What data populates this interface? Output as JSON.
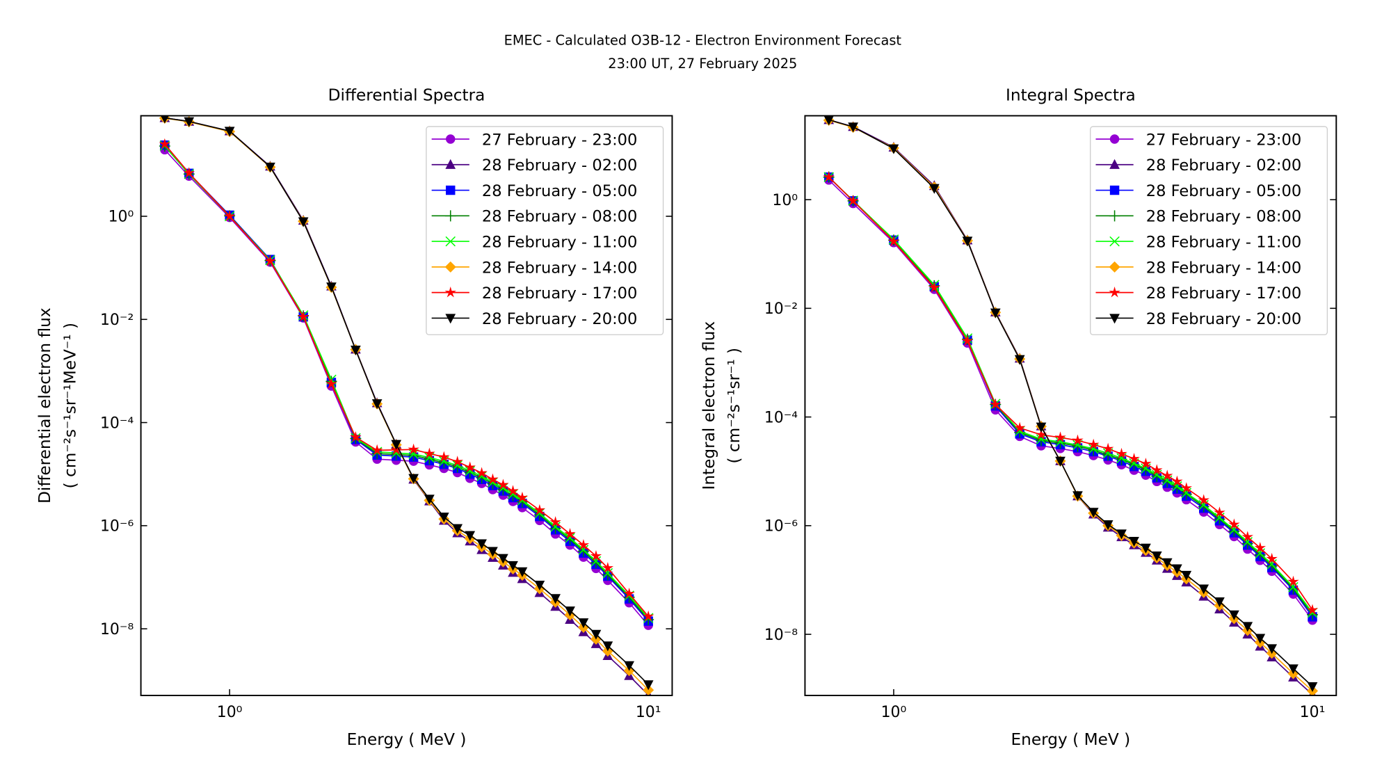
{
  "title": "EMEC - Calculated O3B-12 - Electron Environment Forecast",
  "subtitle": "23:00 UT, 27 February 2025",
  "chart_data": [
    {
      "type": "line",
      "title": "Differential Spectra",
      "xlabel": "Energy ( MeV )",
      "ylabel": [
        "Differential electron flux",
        "( cm⁻²s⁻¹sr⁻¹MeV⁻¹ )"
      ],
      "xscale": "log",
      "yscale": "log",
      "legend": "upper right",
      "xlim": [
        0.614,
        11.4
      ],
      "ylim": [
        5.1e-10,
        89
      ],
      "xticks": [
        {
          "value": 1,
          "label": "10⁰"
        },
        {
          "value": 10,
          "label": "10¹"
        }
      ],
      "yticks": [
        {
          "value": 1,
          "label": "10⁰"
        },
        {
          "value": 0.01,
          "label": "10⁻²"
        },
        {
          "value": 0.0001,
          "label": "10⁻⁴"
        },
        {
          "value": 1e-06,
          "label": "10⁻⁶"
        },
        {
          "value": 1e-08,
          "label": "10⁻⁸"
        }
      ],
      "x": [
        0.7,
        0.8,
        1.0,
        1.25,
        1.5,
        1.75,
        2.0,
        2.25,
        2.5,
        2.75,
        3.0,
        3.25,
        3.5,
        3.75,
        4.0,
        4.25,
        4.5,
        4.75,
        5.0,
        5.5,
        6.0,
        6.5,
        7.0,
        7.5,
        8.0,
        9.0,
        10.0
      ],
      "series": [
        {
          "name": "27 February - 23:00",
          "color": "#9400d3",
          "marker": "o",
          "values": [
            19.5,
            6.0,
            0.95,
            0.129,
            0.0107,
            0.00051,
            4.2e-05,
            1.95e-05,
            1.86e-05,
            1.78e-05,
            1.51e-05,
            1.29e-05,
            1.07e-05,
            8.3e-06,
            6.6e-06,
            5e-06,
            3.9e-06,
            2.95e-06,
            2.24e-06,
            1.26e-06,
            6.9e-07,
            4.2e-07,
            2.45e-07,
            1.48e-07,
            8.7e-08,
            3.2e-08,
            1.17e-08
          ]
        },
        {
          "name": "28 February - 02:00",
          "color": "#4b0082",
          "marker": "^",
          "values": [
            81,
            69,
            45,
            9.3,
            0.83,
            0.044,
            0.00263,
            0.00024,
            3.8e-05,
            7.9e-06,
            3e-06,
            1.26e-06,
            7.2e-07,
            5e-07,
            3.4e-07,
            2.4e-07,
            1.7e-07,
            1.23e-07,
            9.3e-08,
            5e-08,
            2.7e-08,
            1.51e-08,
            8.7e-09,
            5.1e-09,
            3e-09,
            1.23e-09,
            5.2e-10
          ]
        },
        {
          "name": "28 February - 05:00",
          "color": "#0000ff",
          "marker": "s",
          "values": [
            24,
            6.8,
            1.05,
            0.145,
            0.0112,
            0.0006,
            4.7e-05,
            2.34e-05,
            2.24e-05,
            2.14e-05,
            1.82e-05,
            1.55e-05,
            1.29e-05,
            1e-05,
            7.9e-06,
            6e-06,
            4.7e-06,
            3.5e-06,
            2.7e-06,
            1.51e-06,
            8.3e-07,
            5e-07,
            2.95e-07,
            1.78e-07,
            1.05e-07,
            3.8e-08,
            1.41e-08
          ]
        },
        {
          "name": "28 February - 08:00",
          "color": "#008000",
          "marker": "+",
          "values": [
            23,
            6.6,
            1.02,
            0.138,
            0.0117,
            0.00063,
            4.9e-05,
            2.5e-05,
            2.4e-05,
            2.3e-05,
            1.95e-05,
            1.66e-05,
            1.38e-05,
            1.07e-05,
            8.5e-06,
            6.5e-06,
            5e-06,
            3.8e-06,
            2.9e-06,
            1.62e-06,
            8.9e-07,
            5.4e-07,
            3.2e-07,
            1.91e-07,
            1.12e-07,
            4.1e-08,
            1.51e-08
          ]
        },
        {
          "name": "28 February - 11:00",
          "color": "#00ff00",
          "marker": "x",
          "values": [
            23.4,
            6.6,
            1.0,
            0.141,
            0.012,
            0.00068,
            5e-05,
            2.7e-05,
            2.57e-05,
            2.45e-05,
            2.1e-05,
            1.78e-05,
            1.48e-05,
            1.15e-05,
            9.1e-06,
            6.9e-06,
            5.4e-06,
            4.1e-06,
            3.1e-06,
            1.74e-06,
            9.5e-07,
            5.8e-07,
            3.4e-07,
            2.04e-07,
            1.2e-07,
            4.4e-08,
            1.62e-08
          ]
        },
        {
          "name": "28 February - 14:00",
          "color": "#ffa500",
          "marker": "D",
          "values": [
            80,
            68,
            44,
            9.0,
            0.8,
            0.042,
            0.0026,
            0.00023,
            3.7e-05,
            8.1e-06,
            3.1e-06,
            1.35e-06,
            8e-07,
            5.6e-07,
            3.9e-07,
            2.8e-07,
            2e-07,
            1.45e-07,
            1.1e-07,
            6e-08,
            3.3e-08,
            1.86e-08,
            1.07e-08,
            6.3e-09,
            3.7e-09,
            1.55e-09,
            6.5e-10
          ]
        },
        {
          "name": "28 February - 17:00",
          "color": "#ff0000",
          "marker": "*",
          "values": [
            25,
            6.9,
            1.0,
            0.135,
            0.0112,
            0.00056,
            5.2e-05,
            2.9e-05,
            2.95e-05,
            3e-05,
            2.5e-05,
            2.14e-05,
            1.74e-05,
            1.35e-05,
            1.05e-05,
            7.9e-06,
            6.2e-06,
            4.7e-06,
            3.5e-06,
            2e-06,
            1.17e-06,
            6.9e-07,
            4.2e-07,
            2.57e-07,
            1.51e-07,
            4.8e-08,
            1.74e-08
          ]
        },
        {
          "name": "28 February - 20:00",
          "color": "#000000",
          "marker": "v",
          "values": [
            81,
            69,
            45,
            9.1,
            0.79,
            0.043,
            0.00257,
            0.000234,
            3.8e-05,
            8.3e-06,
            3.3e-06,
            1.48e-06,
            8.9e-07,
            6.5e-07,
            4.5e-07,
            3.2e-07,
            2.34e-07,
            1.7e-07,
            1.29e-07,
            7.1e-08,
            3.9e-08,
            2.24e-08,
            1.32e-08,
            7.9e-09,
            4.7e-09,
            1.95e-09,
            8.3e-10
          ]
        }
      ]
    },
    {
      "type": "line",
      "title": "Integral Spectra",
      "xlabel": "Energy ( MeV )",
      "ylabel": [
        "Integral electron flux",
        "( cm⁻²s⁻¹sr⁻¹ )"
      ],
      "xscale": "log",
      "yscale": "log",
      "legend": "upper right",
      "xlim": [
        0.614,
        11.4
      ],
      "ylim": [
        7.5e-10,
        35
      ],
      "xticks": [
        {
          "value": 1,
          "label": "10⁰"
        },
        {
          "value": 10,
          "label": "10¹"
        }
      ],
      "yticks": [
        {
          "value": 1,
          "label": "10⁰"
        },
        {
          "value": 0.01,
          "label": "10⁻²"
        },
        {
          "value": 0.0001,
          "label": "10⁻⁴"
        },
        {
          "value": 1e-06,
          "label": "10⁻⁶"
        },
        {
          "value": 1e-08,
          "label": "10⁻⁸"
        }
      ],
      "x": [
        0.7,
        0.8,
        1.0,
        1.25,
        1.5,
        1.75,
        2.0,
        2.25,
        2.5,
        2.75,
        3.0,
        3.25,
        3.5,
        3.75,
        4.0,
        4.25,
        4.5,
        4.75,
        5.0,
        5.5,
        6.0,
        6.5,
        7.0,
        7.5,
        8.0,
        9.0,
        10.0
      ],
      "series": [
        {
          "name": "27 February - 23:00",
          "color": "#9400d3",
          "marker": "o",
          "values": [
            2.3,
            0.85,
            0.162,
            0.0224,
            0.0023,
            0.000135,
            4.4e-05,
            2.95e-05,
            2.63e-05,
            2.3e-05,
            1.95e-05,
            1.62e-05,
            1.32e-05,
            1.05e-05,
            8.5e-06,
            6.5e-06,
            5.1e-06,
            4e-06,
            3e-06,
            1.78e-06,
            1.05e-06,
            6.3e-07,
            3.7e-07,
            2.3e-07,
            1.45e-07,
            5.5e-08,
            1.82e-08
          ]
        },
        {
          "name": "28 February - 02:00",
          "color": "#4b0082",
          "marker": "^",
          "values": [
            29.5,
            22,
            9.2,
            1.8,
            0.18,
            0.0085,
            0.0012,
            6.8e-05,
            1.55e-05,
            3.5e-06,
            1.62e-06,
            9.3e-07,
            6.2e-07,
            4.4e-07,
            3.2e-07,
            2.3e-07,
            1.62e-07,
            1.2e-07,
            9.1e-08,
            5e-08,
            2.9e-08,
            1.66e-08,
            1e-08,
            6e-09,
            3.8e-09,
            1.62e-09,
            7.8e-10
          ]
        },
        {
          "name": "28 February - 05:00",
          "color": "#0000ff",
          "marker": "s",
          "values": [
            2.6,
            0.95,
            0.18,
            0.025,
            0.0026,
            0.00016,
            4.9e-05,
            3.5e-05,
            3.1e-05,
            2.7e-05,
            2.3e-05,
            1.9e-05,
            1.55e-05,
            1.23e-05,
            1e-05,
            7.6e-06,
            6e-06,
            4.7e-06,
            3.5e-06,
            2.1e-06,
            1.23e-06,
            7.4e-07,
            4.4e-07,
            2.7e-07,
            1.7e-07,
            6.5e-08,
            2.1e-08
          ]
        },
        {
          "name": "28 February - 08:00",
          "color": "#008000",
          "marker": "+",
          "values": [
            2.6,
            0.95,
            0.18,
            0.026,
            0.0027,
            0.00017,
            5.2e-05,
            3.7e-05,
            3.3e-05,
            2.9e-05,
            2.45e-05,
            2e-05,
            1.66e-05,
            1.32e-05,
            1.07e-05,
            8.1e-06,
            6.4e-06,
            5e-06,
            3.8e-06,
            2.24e-06,
            1.32e-06,
            7.9e-07,
            4.7e-07,
            2.9e-07,
            1.82e-07,
            6.9e-08,
            2.3e-08
          ]
        },
        {
          "name": "28 February - 11:00",
          "color": "#00ff00",
          "marker": "x",
          "values": [
            2.6,
            0.96,
            0.185,
            0.027,
            0.0028,
            0.000175,
            5.5e-05,
            3.9e-05,
            3.5e-05,
            3.05e-05,
            2.6e-05,
            2.15e-05,
            1.75e-05,
            1.4e-05,
            1.13e-05,
            8.6e-06,
            6.8e-06,
            5.3e-06,
            4e-06,
            2.4e-06,
            1.4e-06,
            8.4e-07,
            5e-07,
            3.1e-07,
            1.95e-07,
            7.4e-08,
            2.5e-08
          ]
        },
        {
          "name": "28 February - 14:00",
          "color": "#ffa500",
          "marker": "D",
          "values": [
            29,
            21.5,
            8.9,
            1.7,
            0.176,
            0.0084,
            0.00117,
            6.7e-05,
            1.55e-05,
            3.5e-06,
            1.7e-06,
            1e-06,
            6.6e-07,
            4.8e-07,
            3.5e-07,
            2.55e-07,
            1.85e-07,
            1.4e-07,
            1.05e-07,
            5.9e-08,
            3.4e-08,
            1.95e-08,
            1.18e-08,
            7.1e-09,
            4.5e-09,
            1.9e-09,
            9.1e-10
          ]
        },
        {
          "name": "28 February - 17:00",
          "color": "#ff0000",
          "marker": "*",
          "values": [
            2.6,
            0.95,
            0.17,
            0.024,
            0.0025,
            0.00017,
            6.3e-05,
            4.7e-05,
            4.2e-05,
            3.7e-05,
            3.1e-05,
            2.6e-05,
            2.1e-05,
            1.7e-05,
            1.38e-05,
            1.05e-05,
            8.3e-06,
            6.5e-06,
            4.9e-06,
            2.95e-06,
            1.74e-06,
            1.05e-06,
            6.2e-07,
            3.9e-07,
            2.45e-07,
            9.3e-08,
            2.8e-08
          ]
        },
        {
          "name": "28 February - 20:00",
          "color": "#000000",
          "marker": "v",
          "values": [
            29.5,
            21.9,
            8.7,
            1.62,
            0.174,
            0.0083,
            0.00115,
            6.6e-05,
            1.55e-05,
            3.6e-06,
            1.78e-06,
            1.05e-06,
            7.1e-07,
            5.2e-07,
            3.9e-07,
            2.8e-07,
            2.1e-07,
            1.62e-07,
            1.23e-07,
            6.9e-08,
            4e-08,
            2.3e-08,
            1.41e-08,
            8.5e-09,
            5.5e-09,
            2.34e-09,
            1.1e-09
          ]
        }
      ]
    }
  ]
}
